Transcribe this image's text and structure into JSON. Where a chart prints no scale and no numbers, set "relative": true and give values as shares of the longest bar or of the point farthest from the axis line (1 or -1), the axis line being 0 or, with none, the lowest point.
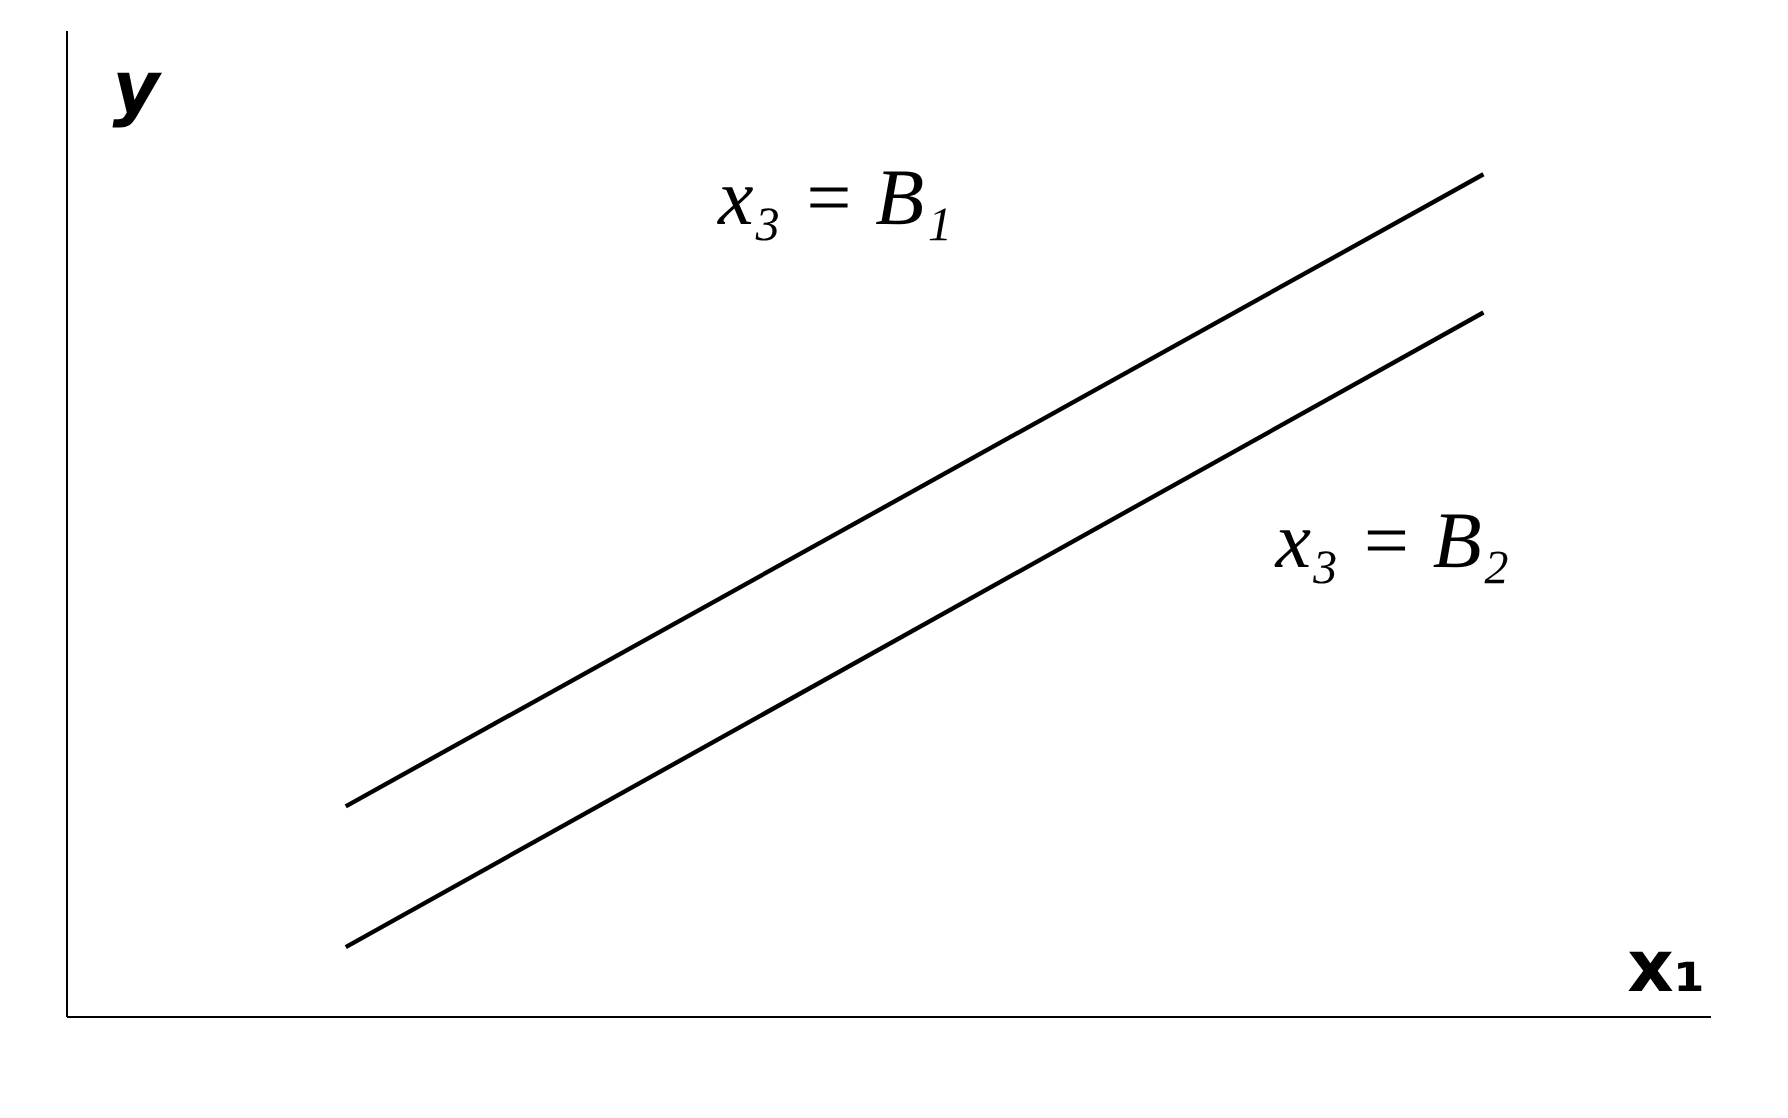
{
  "chart_data": {
    "type": "line",
    "relative": true,
    "xlabel": "x₁",
    "ylabel": "y",
    "categories": [
      null,
      null
    ],
    "series": [
      {
        "name": "x₃ = B₁",
        "color": "#000000",
        "values": [
          0.25,
          1.0
        ]
      },
      {
        "name": "x₃ = B₂",
        "color": "#000000",
        "values": [
          0.083,
          0.836
        ]
      }
    ],
    "legend": false,
    "tick_labels": false,
    "marker": "none",
    "line_style": "solid"
  }
}
